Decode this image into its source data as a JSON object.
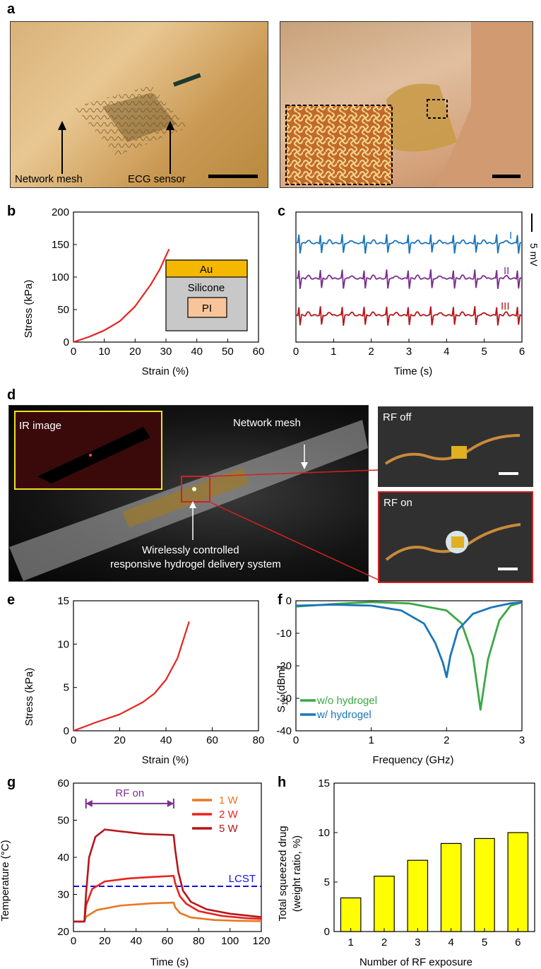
{
  "panels": {
    "a": "a",
    "b": "b",
    "c": "c",
    "d": "d",
    "e": "e",
    "f": "f",
    "g": "g",
    "h": "h"
  },
  "photo_a": {
    "left_label1": "Network mesh",
    "left_label2": "ECG sensor"
  },
  "photo_d": {
    "main_label1": "IR image",
    "main_label2": "Network mesh",
    "main_label3": "Wirelessly controlled",
    "main_label4": "responsive hydrogel delivery system",
    "rf_off": "RF off",
    "rf_on": "RF on"
  },
  "colors": {
    "red": "#e8231f",
    "blue": "#1a75bc",
    "green": "#39a845",
    "purple": "#7b2f8e",
    "darkred": "#b3161b",
    "orange": "#e87722",
    "yellow": "#ffff00",
    "au": "#f5b800",
    "pi": "#f9c49a",
    "silicone": "#c8c8c8"
  },
  "chart_data": [
    {
      "id": "b",
      "type": "line",
      "xlabel": "Strain (%)",
      "ylabel": "Stress (kPa)",
      "xlim": [
        0,
        60
      ],
      "ylim": [
        0,
        200
      ],
      "xticks": [
        0,
        10,
        20,
        30,
        40,
        50,
        60
      ],
      "yticks": [
        0,
        50,
        100,
        150,
        200
      ],
      "series": [
        {
          "x": [
            0,
            5,
            10,
            15,
            20,
            25,
            28,
            31
          ],
          "y": [
            0,
            8,
            18,
            32,
            55,
            88,
            112,
            143
          ]
        }
      ],
      "inset": {
        "layers": [
          "Au",
          "Silicone",
          "PI"
        ]
      }
    },
    {
      "id": "c",
      "type": "line",
      "xlabel": "Time (s)",
      "xlim": [
        0,
        6
      ],
      "xticks": [
        0,
        1,
        2,
        3,
        4,
        5,
        6
      ],
      "scale_bar": "5 mV",
      "series": [
        {
          "name": "I"
        },
        {
          "name": "II"
        },
        {
          "name": "III"
        }
      ]
    },
    {
      "id": "e",
      "type": "line",
      "xlabel": "Strain (%)",
      "ylabel": "Stress (kPa)",
      "xlim": [
        0,
        80
      ],
      "ylim": [
        0,
        15
      ],
      "xticks": [
        0,
        20,
        40,
        60,
        80
      ],
      "yticks": [
        0,
        5,
        10,
        15
      ],
      "series": [
        {
          "x": [
            0,
            10,
            20,
            30,
            35,
            40,
            45,
            50
          ],
          "y": [
            0,
            1,
            1.9,
            3.3,
            4.3,
            5.9,
            8.4,
            12.6
          ]
        }
      ]
    },
    {
      "id": "f",
      "type": "line",
      "xlabel": "Frequency (GHz)",
      "ylabel": "S",
      "ylabel_sub": "11",
      "ylabel_tail": " (dBm)",
      "xlim": [
        0,
        3
      ],
      "ylim": [
        -40,
        0
      ],
      "xticks": [
        0,
        1,
        2,
        3
      ],
      "yticks": [
        0,
        -10,
        -20,
        -30,
        -40
      ],
      "series": [
        {
          "name": "w/o hydrogel",
          "x": [
            0,
            0.5,
            1,
            1.5,
            2,
            2.2,
            2.35,
            2.45,
            2.55,
            2.7,
            2.85,
            3
          ],
          "y": [
            -1.8,
            -1,
            -0.4,
            -0.8,
            -3,
            -7,
            -17,
            -33.5,
            -18,
            -6,
            -1.5,
            -0.5
          ]
        },
        {
          "name": "w/ hydrogel",
          "x": [
            0,
            0.5,
            1,
            1.4,
            1.7,
            1.85,
            1.95,
            2.0,
            2.05,
            2.15,
            2.35,
            2.6,
            2.85,
            3
          ],
          "y": [
            -1.5,
            -1.2,
            -1.5,
            -3,
            -7,
            -13,
            -19,
            -23.5,
            -17,
            -9,
            -4,
            -2,
            -0.8,
            -0.5
          ]
        }
      ],
      "legend": "bottom-left"
    },
    {
      "id": "g",
      "type": "line",
      "xlabel": "Time (s)",
      "ylabel": "Temperature (°C)",
      "xlim": [
        0,
        120
      ],
      "ylim": [
        20,
        60
      ],
      "xticks": [
        0,
        20,
        40,
        60,
        80,
        100,
        120
      ],
      "yticks": [
        20,
        30,
        40,
        50,
        60
      ],
      "annotation": "RF on",
      "lcst_label": "LCST",
      "lcst": 32.2,
      "series": [
        {
          "name": "1 W",
          "x": [
            0,
            7,
            8,
            15,
            30,
            50,
            64,
            65,
            68,
            75,
            90,
            105,
            120
          ],
          "y": [
            22.7,
            22.7,
            24,
            25.8,
            27,
            27.6,
            27.8,
            26.5,
            25,
            23.8,
            23.1,
            22.9,
            22.8
          ]
        },
        {
          "name": "2 W",
          "x": [
            0,
            7,
            8,
            12,
            20,
            35,
            50,
            64,
            65,
            68,
            72,
            80,
            95,
            110,
            120
          ],
          "y": [
            22.7,
            22.7,
            27,
            31.5,
            33.5,
            34.3,
            34.7,
            35,
            33,
            29.5,
            27.5,
            25.5,
            24.2,
            23.6,
            23.4
          ]
        },
        {
          "name": "5 W",
          "x": [
            0,
            7,
            8,
            10,
            14,
            20,
            30,
            45,
            64,
            65,
            67,
            70,
            75,
            85,
            100,
            120
          ],
          "y": [
            22.7,
            22.7,
            30,
            40,
            45.5,
            47.5,
            47,
            46.3,
            46,
            42,
            36,
            31,
            28,
            26,
            24.8,
            23.9
          ]
        }
      ]
    },
    {
      "id": "h",
      "type": "bar",
      "xlabel": "Number of RF exposure",
      "ylabel": "Total squeezed drug",
      "ylabel2": "(weight ratio, %)",
      "ylim": [
        0,
        15
      ],
      "yticks": [
        0,
        5,
        10,
        15
      ],
      "categories": [
        "1",
        "2",
        "3",
        "4",
        "5",
        "6"
      ],
      "values": [
        3.4,
        5.6,
        7.2,
        8.9,
        9.4,
        10.0
      ]
    }
  ]
}
